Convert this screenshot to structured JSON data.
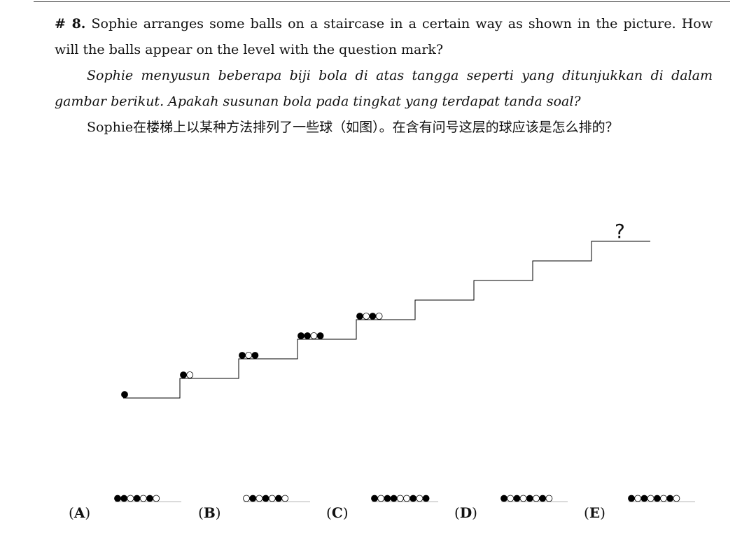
{
  "question": {
    "number": "# 8.",
    "english": "Sophie arranges some balls on a staircase in a certain way as shown in the picture. How will the balls appear on the level with the question mark?",
    "malay": "Sophie menyusun beberapa biji bola di atas tangga seperti yang ditunjukkan di dalam gambar berikut. Apakah susunan bola pada tingkat yang terdapat tanda soal?",
    "chinese": "Sophie在楼梯上以某种方法排列了一些球（如图）。在含有问号这层的球应该是怎么排的？"
  },
  "figure": {
    "question_mark": "?",
    "steps": [
      [
        "black"
      ],
      [
        "black",
        "white"
      ],
      [
        "black",
        "white",
        "black"
      ],
      [
        "black",
        "black",
        "white",
        "black"
      ],
      [
        "black",
        "white",
        "black",
        "white"
      ]
    ]
  },
  "options": [
    {
      "label": "A",
      "balls": [
        "black",
        "black",
        "white",
        "black",
        "white",
        "black",
        "white"
      ]
    },
    {
      "label": "B",
      "balls": [
        "white",
        "black",
        "white",
        "black",
        "white",
        "black",
        "white"
      ]
    },
    {
      "label": "C",
      "balls": [
        "black",
        "white",
        "black",
        "black",
        "white",
        "white",
        "black",
        "white",
        "black"
      ]
    },
    {
      "label": "D",
      "balls": [
        "black",
        "white",
        "black",
        "white",
        "black",
        "white",
        "black",
        "white"
      ]
    },
    {
      "label": "E",
      "balls": [
        "black",
        "white",
        "black",
        "white",
        "black",
        "white",
        "black",
        "white"
      ]
    }
  ],
  "colors": {
    "black": "#000000",
    "white": "#ffffff",
    "stroke": "#000000"
  }
}
